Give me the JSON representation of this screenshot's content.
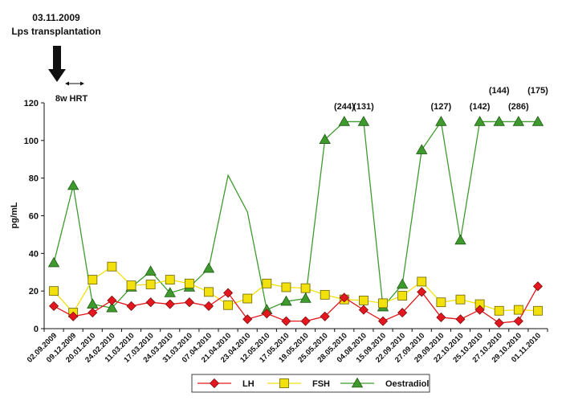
{
  "chart_data": {
    "type": "line",
    "annotation": {
      "date": "03.11.2009",
      "event": "Lps transplantation",
      "hrt_label": "8w HRT"
    },
    "ylabel": "pg/mL",
    "xlabel": "",
    "ylim": [
      0,
      120
    ],
    "yticks": [
      0,
      20,
      40,
      60,
      80,
      100,
      120
    ],
    "grid": false,
    "legend_position": "bottom",
    "categories": [
      "02.09.2009",
      "09.12.2009",
      "20.01.2010",
      "24.02.2010",
      "11.03.2010",
      "17.03.2010",
      "24.03.2010",
      "31.03.2010",
      "07.04.2010",
      "21.04.2010",
      "23.04.2010",
      "12.05.2010",
      "17.05.2010",
      "19.05.2010",
      "25.05.2010",
      "28.05.2010",
      "04.08.2010",
      "15.09.2010",
      "22.09.2010",
      "27.09.2010",
      "29.09.2010",
      "22.10.2010",
      "25.10.2010",
      "27.10.2010",
      "29.10.2010",
      "01.11.2010"
    ],
    "series": [
      {
        "name": "LH",
        "color": "#e3171d",
        "marker": "diamond",
        "values": [
          12,
          6.5,
          8.5,
          15,
          12,
          14,
          13,
          14,
          12,
          19,
          5,
          8,
          4,
          4,
          6.5,
          16.5,
          10,
          4,
          8.5,
          19.5,
          6,
          5,
          10,
          3,
          4,
          22.5
        ]
      },
      {
        "name": "FSH",
        "color": "#f2e10c",
        "marker": "square",
        "values": [
          20,
          8.5,
          26,
          33,
          23,
          23.5,
          26,
          24,
          19.5,
          12.5,
          16,
          24,
          22,
          21.5,
          18,
          15.5,
          15,
          13.5,
          17.5,
          25,
          14,
          15.5,
          13,
          9.5,
          10,
          9.5
        ]
      },
      {
        "name": "Oestradiol",
        "color": "#3f9a2e",
        "marker": "triangle",
        "values": [
          35,
          76,
          13,
          11,
          22,
          30.5,
          19,
          22,
          32,
          null,
          null,
          10,
          14.5,
          16,
          100.5,
          110,
          110,
          11.5,
          23.5,
          95,
          110,
          47,
          110,
          110,
          110,
          110
        ],
        "unmarked_points": [
          {
            "index": 9,
            "value": 81.5
          },
          {
            "index": 10,
            "value": 62
          }
        ]
      }
    ],
    "value_labels": [
      {
        "index": 15,
        "text": "(244)"
      },
      {
        "index": 16,
        "text": "(131)"
      },
      {
        "index": 20,
        "text": "(127)"
      },
      {
        "index": 22,
        "text": "(142)"
      },
      {
        "index": 23,
        "text": "(144)"
      },
      {
        "index": 24,
        "text": "(286)"
      },
      {
        "index": 25,
        "text": "(175)"
      }
    ]
  }
}
